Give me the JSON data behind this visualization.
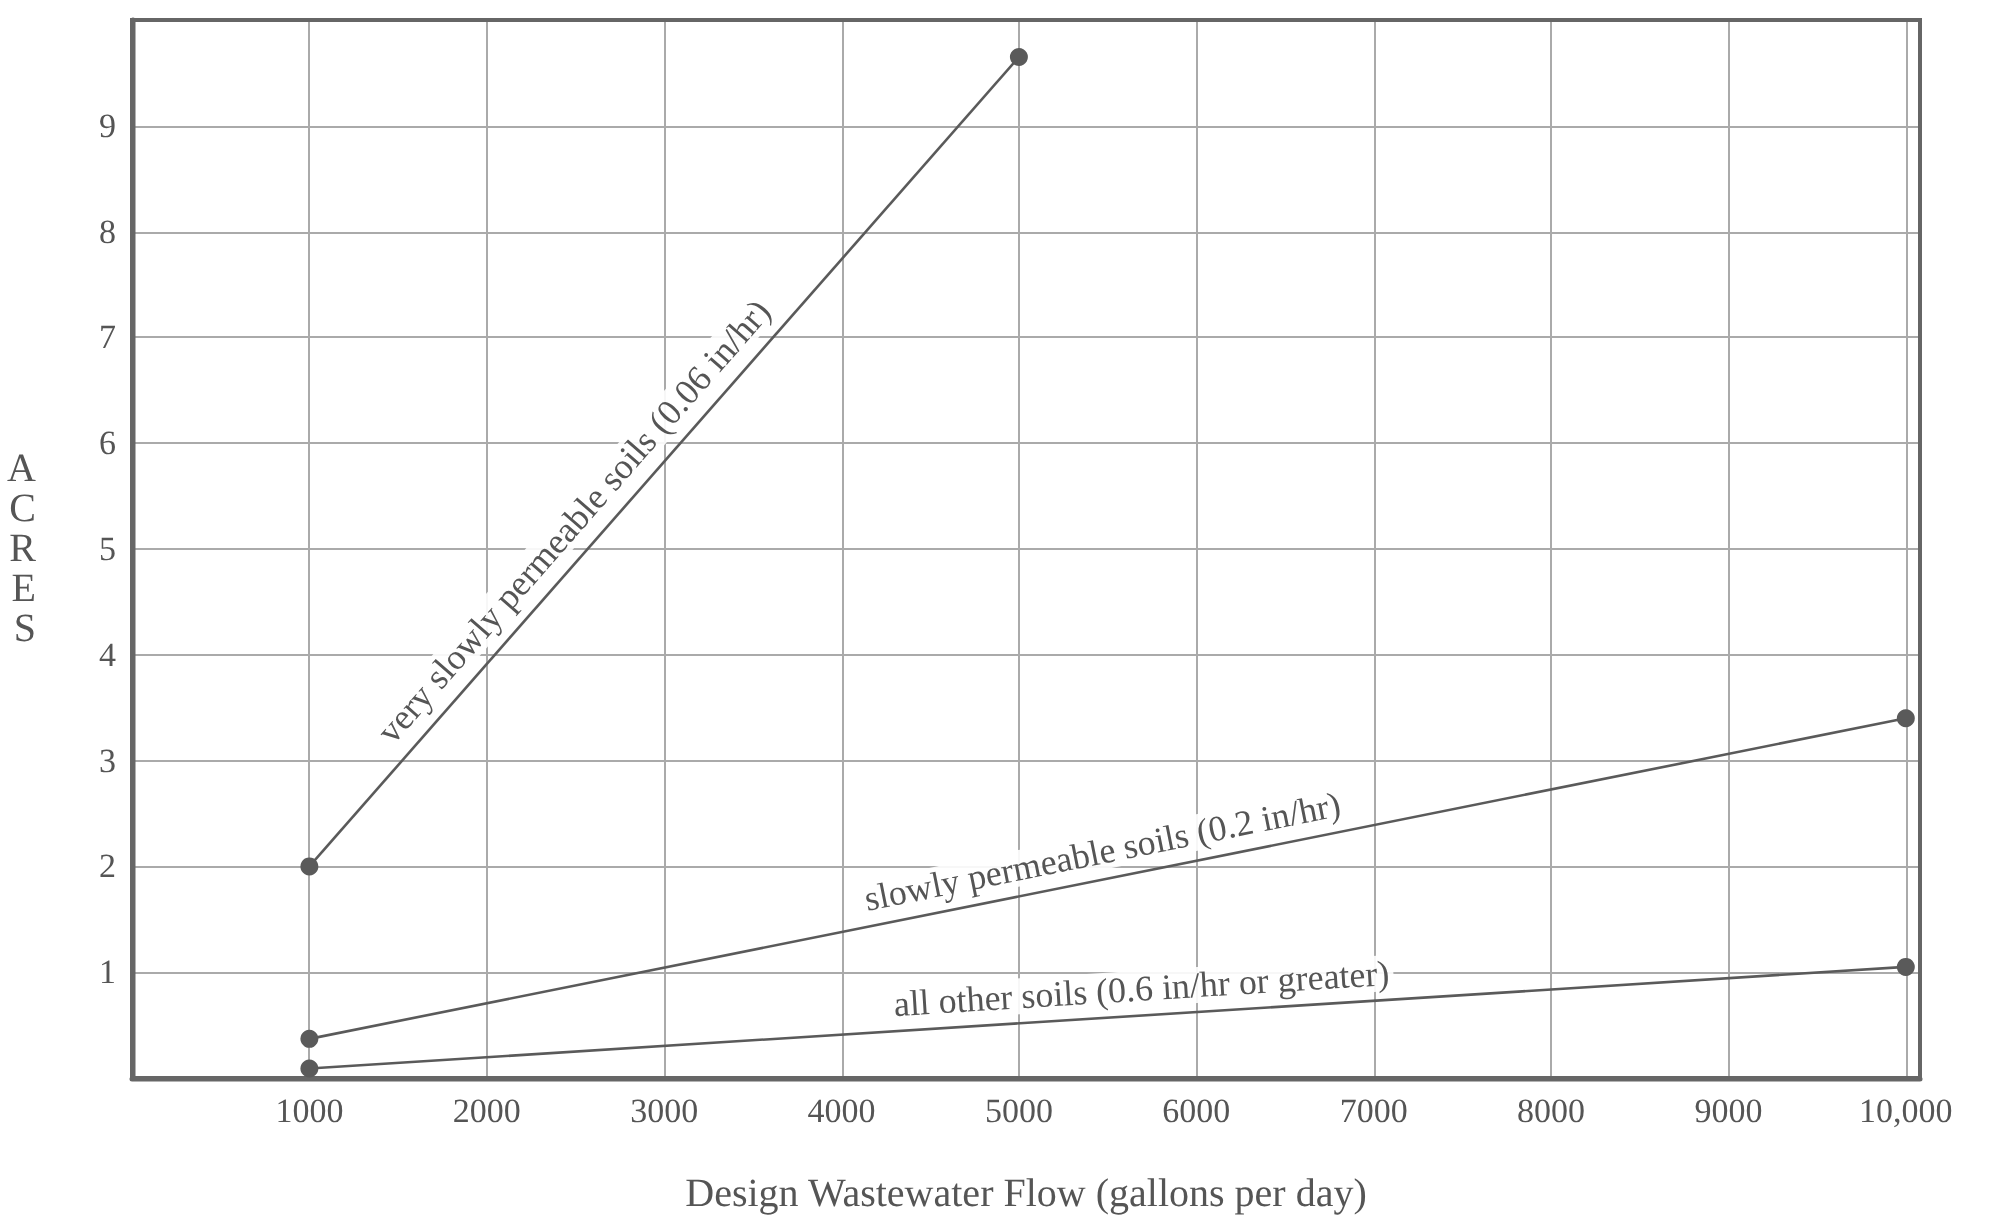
{
  "chart_data": {
    "type": "line",
    "xlabel": "Design Wastewater Flow (gallons per day)",
    "ylabel": "ACRES",
    "series": [
      {
        "color": "#5a5a5a",
        "x": [
          1000,
          5000
        ],
        "values": [
          2.0,
          9.65
        ]
      },
      {
        "color": "#5a5a5a",
        "x": [
          1000,
          10000
        ],
        "values": [
          0.37,
          3.4
        ]
      },
      {
        "color": "#5a5a5a",
        "x": [
          1000,
          10000
        ],
        "values": [
          0.09,
          1.05
        ]
      }
    ],
    "annotations": [
      {
        "text": "very slowly permeable soils (0.06 in/hr)",
        "x": 2600,
        "y": 5.1
      },
      {
        "text": "slowly permeable soils (0.2 in/hr)",
        "x": 5500,
        "y": 1.9
      },
      {
        "text": "all other soils (0.6 in/hr or greater)",
        "x": 5700,
        "y": 0.6
      }
    ],
    "xlim": [
      0,
      10080
    ],
    "ylim": [
      0,
      10
    ],
    "xticks": [
      1000,
      2000,
      3000,
      4000,
      5000,
      6000,
      7000,
      8000,
      9000,
      {
        "value": 10000,
        "label": "10,000"
      }
    ],
    "yticks": [
      1,
      2,
      3,
      4,
      5,
      6,
      7,
      8,
      9
    ],
    "grid": true,
    "marker": "circle",
    "line_style": "solid"
  }
}
